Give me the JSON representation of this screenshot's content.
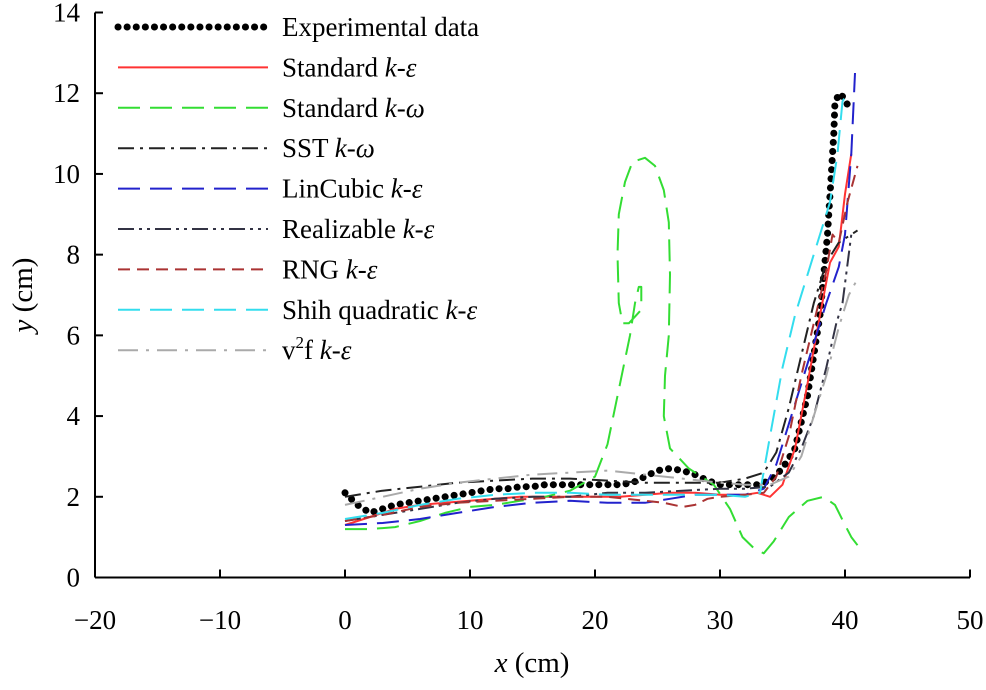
{
  "chart_data": {
    "type": "line",
    "title": "",
    "xlabel": {
      "var": "x",
      "unit": " (cm)"
    },
    "ylabel": {
      "var": "y",
      "unit": " (cm)"
    },
    "xlim": [
      -20,
      50
    ],
    "ylim": [
      0,
      14
    ],
    "xticks": [
      -20,
      -10,
      0,
      10,
      20,
      30,
      40,
      50
    ],
    "xtick_labels": [
      "−20",
      "−10",
      "0",
      "10",
      "20",
      "30",
      "40",
      "50"
    ],
    "yticks": [
      0,
      2,
      4,
      6,
      8,
      10,
      12,
      14
    ],
    "ytick_labels": [
      "0",
      "2",
      "4",
      "6",
      "8",
      "10",
      "12",
      "14"
    ],
    "grid": false,
    "legend_position": "top-left",
    "series": [
      {
        "name": "Experimental data",
        "label": {
          "main": "Experimental data",
          "ital": "",
          "sup": "",
          "rest": ""
        },
        "color": "#000000",
        "style": "dotted",
        "points": [
          [
            0,
            2.1
          ],
          [
            1,
            1.8
          ],
          [
            2,
            1.6
          ],
          [
            3,
            1.7
          ],
          [
            4,
            1.8
          ],
          [
            5,
            1.85
          ],
          [
            6,
            1.9
          ],
          [
            7,
            1.95
          ],
          [
            8,
            2.0
          ],
          [
            9,
            2.05
          ],
          [
            10,
            2.1
          ],
          [
            11,
            2.15
          ],
          [
            12,
            2.2
          ],
          [
            13,
            2.2
          ],
          [
            14,
            2.25
          ],
          [
            15,
            2.25
          ],
          [
            16,
            2.3
          ],
          [
            17,
            2.3
          ],
          [
            18,
            2.3
          ],
          [
            19,
            2.3
          ],
          [
            20,
            2.3
          ],
          [
            21,
            2.3
          ],
          [
            22,
            2.3
          ],
          [
            23,
            2.35
          ],
          [
            24,
            2.5
          ],
          [
            25,
            2.65
          ],
          [
            26,
            2.7
          ],
          [
            27,
            2.65
          ],
          [
            28,
            2.55
          ],
          [
            29,
            2.4
          ],
          [
            30,
            2.3
          ],
          [
            31,
            2.3
          ],
          [
            32,
            2.3
          ],
          [
            33,
            2.3
          ],
          [
            34,
            2.4
          ],
          [
            35,
            2.7
          ],
          [
            36,
            3.2
          ],
          [
            37,
            4.5
          ],
          [
            38,
            6.5
          ],
          [
            38.6,
            8.5
          ],
          [
            38.9,
            10.0
          ],
          [
            39.1,
            11.0
          ],
          [
            39.2,
            11.8
          ],
          [
            39.6,
            12.0
          ],
          [
            40.1,
            11.8
          ],
          [
            40.3,
            11.6
          ]
        ]
      },
      {
        "name": "Standard k-ε",
        "label": {
          "main": "Standard ",
          "ital": "k-ε",
          "sup": "",
          "rest": ""
        },
        "color": "#ff3333",
        "style": "solid",
        "points": [
          [
            0,
            1.3
          ],
          [
            2,
            1.5
          ],
          [
            4,
            1.7
          ],
          [
            6,
            1.8
          ],
          [
            8,
            1.85
          ],
          [
            10,
            1.9
          ],
          [
            12,
            1.95
          ],
          [
            14,
            2.0
          ],
          [
            16,
            2.0
          ],
          [
            18,
            2.0
          ],
          [
            20,
            2.0
          ],
          [
            22,
            2.0
          ],
          [
            24,
            2.05
          ],
          [
            26,
            2.1
          ],
          [
            28,
            2.1
          ],
          [
            30,
            2.05
          ],
          [
            32,
            2.05
          ],
          [
            33,
            2.1
          ],
          [
            34,
            2.0
          ],
          [
            35,
            2.3
          ],
          [
            36,
            3.2
          ],
          [
            37,
            4.8
          ],
          [
            38,
            6.5
          ],
          [
            38.8,
            7.8
          ],
          [
            39.5,
            8.2
          ],
          [
            40,
            9.5
          ],
          [
            40.5,
            10.5
          ]
        ]
      },
      {
        "name": "Standard k-ω",
        "label": {
          "main": "Standard ",
          "ital": "k-ω",
          "sup": "",
          "rest": ""
        },
        "color": "#33dd33",
        "style": "dash-long",
        "points": [
          [
            0,
            1.2
          ],
          [
            2,
            1.2
          ],
          [
            4,
            1.25
          ],
          [
            6,
            1.4
          ],
          [
            8,
            1.6
          ],
          [
            10,
            1.75
          ],
          [
            12,
            1.8
          ],
          [
            14,
            1.9
          ],
          [
            16,
            2.0
          ],
          [
            18,
            2.15
          ],
          [
            20,
            2.5
          ],
          [
            21,
            3.3
          ],
          [
            22,
            4.8
          ],
          [
            22.8,
            6.0
          ],
          [
            23.2,
            6.8
          ],
          [
            23.5,
            7.2
          ],
          [
            23.7,
            7.2
          ],
          [
            23.7,
            6.8
          ],
          [
            23.6,
            6.6
          ],
          [
            23.3,
            6.5
          ],
          [
            22.7,
            6.3
          ],
          [
            22.2,
            6.3
          ],
          [
            21.9,
            6.8
          ],
          [
            21.8,
            8.0
          ],
          [
            21.9,
            9.0
          ],
          [
            22.4,
            9.8
          ],
          [
            23.0,
            10.3
          ],
          [
            24.0,
            10.4
          ],
          [
            24.8,
            10.2
          ],
          [
            25.5,
            9.6
          ],
          [
            25.9,
            8.8
          ],
          [
            26.0,
            7.5
          ],
          [
            25.9,
            6.0
          ],
          [
            25.6,
            5.0
          ],
          [
            25.5,
            4.0
          ],
          [
            26.0,
            3.2
          ],
          [
            27.5,
            2.7
          ],
          [
            29.5,
            2.3
          ],
          [
            30.8,
            1.7
          ],
          [
            31.8,
            1.0
          ],
          [
            32.8,
            0.7
          ],
          [
            33.5,
            0.6
          ],
          [
            34.3,
            0.9
          ],
          [
            35.5,
            1.5
          ],
          [
            37,
            1.9
          ],
          [
            38.3,
            2.0
          ],
          [
            39.2,
            1.8
          ],
          [
            40,
            1.3
          ],
          [
            40.5,
            1.0
          ],
          [
            41,
            0.8
          ]
        ]
      },
      {
        "name": "SST k-ω",
        "label": {
          "main": "SST ",
          "ital": "k-ω",
          "sup": "",
          "rest": ""
        },
        "color": "#222222",
        "style": "dash-dot",
        "points": [
          [
            0,
            2.0
          ],
          [
            3,
            2.15
          ],
          [
            6,
            2.25
          ],
          [
            9,
            2.35
          ],
          [
            12,
            2.4
          ],
          [
            15,
            2.45
          ],
          [
            18,
            2.45
          ],
          [
            21,
            2.4
          ],
          [
            24,
            2.35
          ],
          [
            27,
            2.35
          ],
          [
            30,
            2.35
          ],
          [
            32,
            2.45
          ],
          [
            33.5,
            2.6
          ],
          [
            34.5,
            3.1
          ],
          [
            35.5,
            4.2
          ],
          [
            36.5,
            5.5
          ],
          [
            37.5,
            6.8
          ],
          [
            38.5,
            7.8
          ],
          [
            39.5,
            8.3
          ],
          [
            40.5,
            8.5
          ],
          [
            41,
            8.6
          ]
        ]
      },
      {
        "name": "LinCubic k-ε",
        "label": {
          "main": "LinCubic ",
          "ital": "k-ε",
          "sup": "",
          "rest": ""
        },
        "color": "#2222cc",
        "style": "dash-long",
        "points": [
          [
            0,
            1.3
          ],
          [
            3,
            1.35
          ],
          [
            6,
            1.45
          ],
          [
            9,
            1.6
          ],
          [
            12,
            1.75
          ],
          [
            15,
            1.85
          ],
          [
            18,
            1.9
          ],
          [
            21,
            1.85
          ],
          [
            24,
            1.85
          ],
          [
            26,
            1.95
          ],
          [
            28,
            2.05
          ],
          [
            30,
            2.05
          ],
          [
            32,
            2.05
          ],
          [
            33.5,
            2.2
          ],
          [
            34.5,
            2.8
          ],
          [
            35.5,
            3.8
          ],
          [
            36.5,
            4.8
          ],
          [
            37.5,
            5.8
          ],
          [
            38.5,
            6.8
          ],
          [
            39.5,
            7.7
          ],
          [
            40,
            8.5
          ],
          [
            40.5,
            10.5
          ],
          [
            40.8,
            12.5
          ]
        ]
      },
      {
        "name": "Realizable k-ε",
        "label": {
          "main": "Realizable ",
          "ital": "k-ε",
          "sup": "",
          "rest": ""
        },
        "color": "#333344",
        "style": "dash-dot-dot",
        "points": [
          [
            0,
            1.4
          ],
          [
            3,
            1.55
          ],
          [
            6,
            1.7
          ],
          [
            9,
            1.85
          ],
          [
            12,
            1.95
          ],
          [
            15,
            2.0
          ],
          [
            18,
            2.0
          ],
          [
            21,
            2.1
          ],
          [
            24,
            2.1
          ],
          [
            27,
            2.15
          ],
          [
            30,
            2.2
          ],
          [
            32,
            2.2
          ],
          [
            34,
            2.25
          ],
          [
            35.5,
            2.6
          ],
          [
            36.5,
            3.2
          ],
          [
            37.5,
            4.0
          ],
          [
            38.5,
            5.2
          ],
          [
            39.3,
            6.3
          ],
          [
            39.8,
            6.8
          ],
          [
            40.5,
            8.5
          ]
        ]
      },
      {
        "name": "RNG k-ε",
        "label": {
          "main": "RNG ",
          "ital": "k-ε",
          "sup": "",
          "rest": ""
        },
        "color": "#aa3333",
        "style": "dashed",
        "points": [
          [
            0,
            1.4
          ],
          [
            3,
            1.55
          ],
          [
            6,
            1.75
          ],
          [
            9,
            1.85
          ],
          [
            12,
            1.9
          ],
          [
            15,
            1.95
          ],
          [
            18,
            2.0
          ],
          [
            21,
            2.0
          ],
          [
            24,
            1.9
          ],
          [
            25.5,
            1.85
          ],
          [
            27,
            1.75
          ],
          [
            28,
            1.8
          ],
          [
            29,
            1.95
          ],
          [
            30,
            2.0
          ],
          [
            32,
            2.05
          ],
          [
            33.5,
            2.1
          ],
          [
            34.5,
            2.5
          ],
          [
            35.5,
            3.5
          ],
          [
            36.5,
            5.0
          ],
          [
            37.5,
            6.3
          ],
          [
            38.5,
            7.6
          ],
          [
            39,
            8.5
          ],
          [
            39.5,
            8.3
          ],
          [
            40.2,
            9.3
          ],
          [
            41,
            10.2
          ]
        ]
      },
      {
        "name": "Shih quadratic k-ε",
        "label": {
          "main": "Shih quadratic ",
          "ital": "k-ε",
          "sup": "",
          "rest": ""
        },
        "color": "#33ddee",
        "style": "dash-long",
        "points": [
          [
            0,
            1.45
          ],
          [
            3,
            1.6
          ],
          [
            6,
            1.8
          ],
          [
            9,
            1.95
          ],
          [
            12,
            2.05
          ],
          [
            15,
            2.1
          ],
          [
            18,
            2.1
          ],
          [
            21,
            2.05
          ],
          [
            24,
            2.05
          ],
          [
            27,
            2.05
          ],
          [
            30,
            2.05
          ],
          [
            32,
            2.0
          ],
          [
            33.2,
            2.1
          ],
          [
            34,
            3.5
          ],
          [
            35,
            5.2
          ],
          [
            36,
            6.5
          ],
          [
            37,
            7.5
          ],
          [
            38,
            8.5
          ],
          [
            38.8,
            9.3
          ],
          [
            39.4,
            10.5
          ],
          [
            39.8,
            11.8
          ],
          [
            40.2,
            12.0
          ]
        ]
      },
      {
        "name": "v²f k-ε",
        "label": {
          "main": "v",
          "ital": " k-ε",
          "sup": "2",
          "rest": "f"
        },
        "color": "#aaaaaa",
        "style": "dash-long-dot",
        "points": [
          [
            0,
            1.8
          ],
          [
            3,
            2.0
          ],
          [
            6,
            2.2
          ],
          [
            9,
            2.35
          ],
          [
            12,
            2.45
          ],
          [
            15,
            2.55
          ],
          [
            18,
            2.6
          ],
          [
            21,
            2.65
          ],
          [
            24,
            2.55
          ],
          [
            27,
            2.45
          ],
          [
            30,
            2.35
          ],
          [
            32,
            2.3
          ],
          [
            34,
            2.3
          ],
          [
            35.5,
            2.5
          ],
          [
            36.5,
            3.0
          ],
          [
            37.5,
            4.0
          ],
          [
            38.5,
            5.0
          ],
          [
            39.5,
            6.2
          ],
          [
            40.3,
            7.0
          ],
          [
            41,
            7.4
          ]
        ]
      }
    ]
  }
}
